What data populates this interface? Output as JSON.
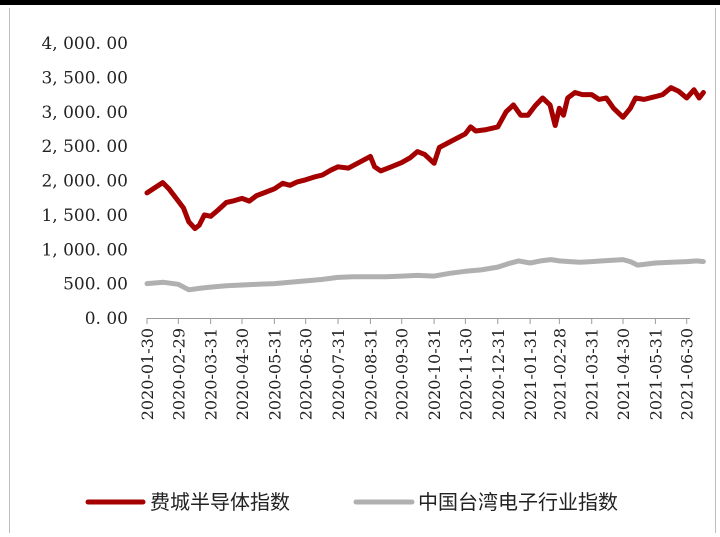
{
  "chart_data": {
    "type": "line",
    "title": "",
    "xlabel": "",
    "ylabel": "",
    "ylim": [
      0,
      4000
    ],
    "y_ticks": [
      0,
      500,
      1000,
      1500,
      2000,
      2500,
      3000,
      3500,
      4000
    ],
    "y_tick_labels": [
      "0. 00",
      "500. 00",
      "1, 000. 00",
      "1, 500. 00",
      "2, 000. 00",
      "2, 500. 00",
      "3, 000. 00",
      "3, 500. 00",
      "4, 000. 00"
    ],
    "x_tick_labels": [
      "2020-01-30",
      "2020-02-29",
      "2020-03-31",
      "2020-04-30",
      "2020-05-31",
      "2020-06-30",
      "2020-07-31",
      "2020-08-31",
      "2020-09-30",
      "2020-10-31",
      "2020-11-30",
      "2020-12-31",
      "2021-01-31",
      "2021-02-28",
      "2021-03-31",
      "2021-04-30",
      "2021-05-31",
      "2021-06-30"
    ],
    "grid": false,
    "legend_position": "bottom",
    "series": [
      {
        "name": "费城半导体指数",
        "color": "#a50000",
        "x": [
          "2020-01-30",
          "2020-02-07",
          "2020-02-14",
          "2020-02-20",
          "2020-02-29",
          "2020-03-05",
          "2020-03-10",
          "2020-03-16",
          "2020-03-20",
          "2020-03-25",
          "2020-03-31",
          "2020-04-07",
          "2020-04-15",
          "2020-04-21",
          "2020-04-30",
          "2020-05-07",
          "2020-05-14",
          "2020-05-21",
          "2020-05-31",
          "2020-06-08",
          "2020-06-15",
          "2020-06-22",
          "2020-06-30",
          "2020-07-08",
          "2020-07-16",
          "2020-07-24",
          "2020-07-31",
          "2020-08-10",
          "2020-08-20",
          "2020-08-31",
          "2020-09-04",
          "2020-09-10",
          "2020-09-20",
          "2020-09-30",
          "2020-10-08",
          "2020-10-15",
          "2020-10-22",
          "2020-10-31",
          "2020-11-05",
          "2020-11-15",
          "2020-11-30",
          "2020-12-05",
          "2020-12-10",
          "2020-12-20",
          "2020-12-31",
          "2021-01-08",
          "2021-01-15",
          "2021-01-22",
          "2021-01-29",
          "2021-02-05",
          "2021-02-12",
          "2021-02-19",
          "2021-02-24",
          "2021-02-28",
          "2021-03-04",
          "2021-03-08",
          "2021-03-15",
          "2021-03-22",
          "2021-03-31",
          "2021-04-07",
          "2021-04-14",
          "2021-04-21",
          "2021-04-30",
          "2021-05-07",
          "2021-05-12",
          "2021-05-20",
          "2021-05-31",
          "2021-06-07",
          "2021-06-15",
          "2021-06-22",
          "2021-06-30",
          "2021-07-07",
          "2021-07-12",
          "2021-07-16"
        ],
        "values": [
          1820,
          1900,
          1970,
          1880,
          1700,
          1600,
          1400,
          1300,
          1350,
          1500,
          1480,
          1570,
          1680,
          1700,
          1740,
          1700,
          1780,
          1820,
          1880,
          1960,
          1930,
          1980,
          2010,
          2050,
          2080,
          2150,
          2200,
          2180,
          2260,
          2350,
          2200,
          2140,
          2200,
          2260,
          2330,
          2420,
          2380,
          2250,
          2480,
          2560,
          2680,
          2780,
          2720,
          2740,
          2780,
          3000,
          3100,
          2950,
          2950,
          3090,
          3200,
          3100,
          2800,
          3050,
          2950,
          3200,
          3280,
          3250,
          3250,
          3180,
          3200,
          3050,
          2920,
          3050,
          3200,
          3180,
          3220,
          3250,
          3350,
          3300,
          3200,
          3320,
          3200,
          3280
        ]
      },
      {
        "name": "中国台湾电子行业指数",
        "color": "#b0b0b0",
        "x": [
          "2020-01-30",
          "2020-02-15",
          "2020-02-29",
          "2020-03-10",
          "2020-03-20",
          "2020-03-31",
          "2020-04-15",
          "2020-04-30",
          "2020-05-15",
          "2020-05-31",
          "2020-06-15",
          "2020-06-30",
          "2020-07-15",
          "2020-07-31",
          "2020-08-15",
          "2020-08-31",
          "2020-09-15",
          "2020-09-30",
          "2020-10-15",
          "2020-10-31",
          "2020-11-15",
          "2020-11-30",
          "2020-12-15",
          "2020-12-31",
          "2021-01-10",
          "2021-01-20",
          "2021-01-31",
          "2021-02-10",
          "2021-02-20",
          "2021-02-28",
          "2021-03-10",
          "2021-03-20",
          "2021-03-31",
          "2021-04-10",
          "2021-04-20",
          "2021-04-30",
          "2021-05-07",
          "2021-05-14",
          "2021-05-31",
          "2021-06-15",
          "2021-06-30",
          "2021-07-10",
          "2021-07-16"
        ],
        "values": [
          500,
          520,
          490,
          410,
          430,
          450,
          470,
          480,
          490,
          500,
          520,
          540,
          560,
          590,
          600,
          600,
          600,
          610,
          620,
          610,
          650,
          680,
          700,
          740,
          790,
          830,
          800,
          830,
          850,
          830,
          820,
          810,
          820,
          830,
          840,
          850,
          820,
          770,
          800,
          810,
          820,
          830,
          820
        ]
      }
    ]
  }
}
